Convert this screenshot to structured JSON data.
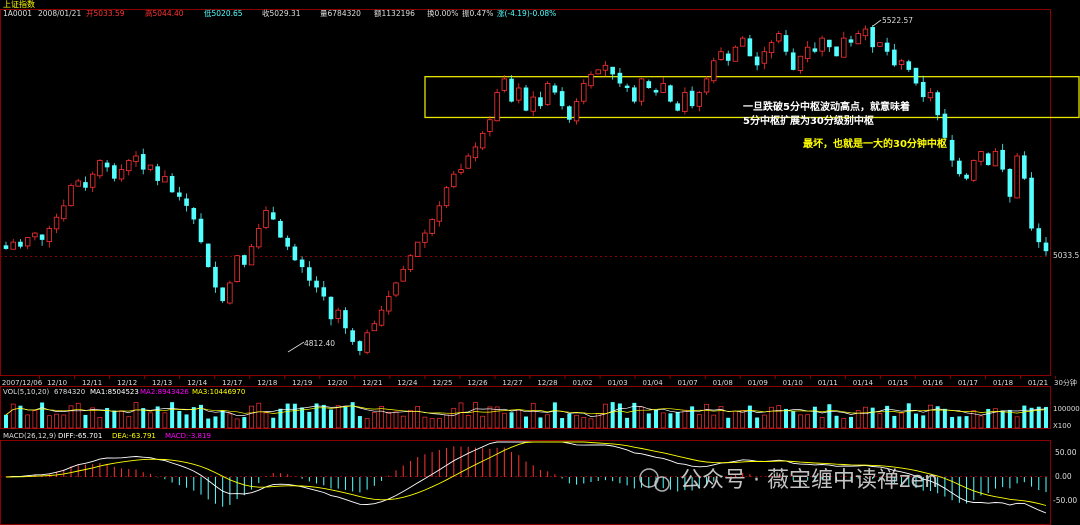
{
  "header": {
    "index_name": "上证指数",
    "code": "1A0001",
    "date": "2008/01/21",
    "open": "开5033.59",
    "high": "高5044.40",
    "low": "低5020.65",
    "close": "收5029.31",
    "volume": "量6784320",
    "amount": "额1132196",
    "turnover": "换0.00%",
    "amplitude": "振0.47%",
    "change": "涨(-4.19)-0.08%"
  },
  "colors": {
    "up": "#ff3232",
    "down": "#54ffff",
    "zone": "#e6e600",
    "grid": "#8b0000",
    "white_line": "#ffffff",
    "yellow_line": "#ffff00",
    "magenta": "#ff00ff",
    "annotation_white": "#ffffff",
    "annotation_yellow": "#ffff00"
  },
  "annotations": {
    "high_label": "5522.57",
    "low_label": "4812.40",
    "last_label": "5033.5",
    "note1_line1": "一旦跌破5分中枢波动高点，就意味着",
    "note1_line2": "5分中枢扩展为30分级别中枢",
    "note2": "最坏，也就是一大的30分钟中枢",
    "period": "30分钟"
  },
  "x_labels": [
    "2007/12/06",
    "12/10",
    "12/11",
    "12/12",
    "12/13",
    "12/14",
    "12/17",
    "12/18",
    "12/19",
    "12/20",
    "12/21",
    "12/24",
    "12/25",
    "12/26",
    "12/27",
    "12/28",
    "01/02",
    "01/03",
    "01/04",
    "01/07",
    "01/08",
    "01/09",
    "01/10",
    "01/11",
    "01/14",
    "01/15",
    "01/16",
    "01/17",
    "01/18",
    "01/21"
  ],
  "vol_panel": {
    "title": "VOL(5,10,20)",
    "value": "6784320",
    "ma1": "MA1:8504523",
    "ma2": "MA2:8943426",
    "ma3": "MA3:10446970",
    "y_label": "100000",
    "unit": "X100"
  },
  "macd_panel": {
    "title": "MACD(26,12,9)",
    "diff": "DIFF:-65.701",
    "dea": "DEA:-63.791",
    "macd": "MACD:-3.819",
    "y_labels": [
      "50.00",
      "0.00",
      "-50.00"
    ]
  },
  "watermark": "公众号 · 薇宝缠中读禅zen",
  "chart_data": {
    "type": "candlestick",
    "title": "上证指数",
    "ylim": [
      4790,
      5540
    ],
    "zone": [
      5325,
      5415
    ],
    "closes": [
      5035,
      5050,
      5040,
      5060,
      5070,
      5055,
      5080,
      5105,
      5130,
      5175,
      5185,
      5170,
      5200,
      5230,
      5215,
      5190,
      5210,
      5230,
      5240,
      5210,
      5220,
      5185,
      5195,
      5160,
      5150,
      5130,
      5100,
      5050,
      4995,
      4950,
      4920,
      4960,
      5020,
      5000,
      5040,
      5080,
      5120,
      5100,
      5060,
      5040,
      5010,
      4995,
      4965,
      4950,
      4930,
      4880,
      4900,
      4860,
      4830,
      4810,
      4850,
      4870,
      4900,
      4930,
      4960,
      4990,
      5020,
      5050,
      5070,
      5100,
      5130,
      5170,
      5200,
      5210,
      5240,
      5260,
      5290,
      5320,
      5380,
      5410,
      5360,
      5390,
      5340,
      5370,
      5350,
      5400,
      5380,
      5350,
      5320,
      5360,
      5400,
      5420,
      5430,
      5440,
      5420,
      5400,
      5390,
      5360,
      5410,
      5390,
      5380,
      5400,
      5360,
      5340,
      5380,
      5350,
      5380,
      5410,
      5450,
      5470,
      5450,
      5480,
      5500,
      5460,
      5440,
      5470,
      5490,
      5510,
      5470,
      5430,
      5460,
      5480,
      5470,
      5500,
      5480,
      5460,
      5500,
      5490,
      5510,
      5520,
      5480,
      5490,
      5470,
      5440,
      5450,
      5430,
      5400,
      5370,
      5380,
      5330,
      5280,
      5230,
      5200,
      5190,
      5230,
      5250,
      5220,
      5250,
      5210,
      5150,
      5240,
      5190,
      5080,
      5050,
      5030
    ]
  }
}
